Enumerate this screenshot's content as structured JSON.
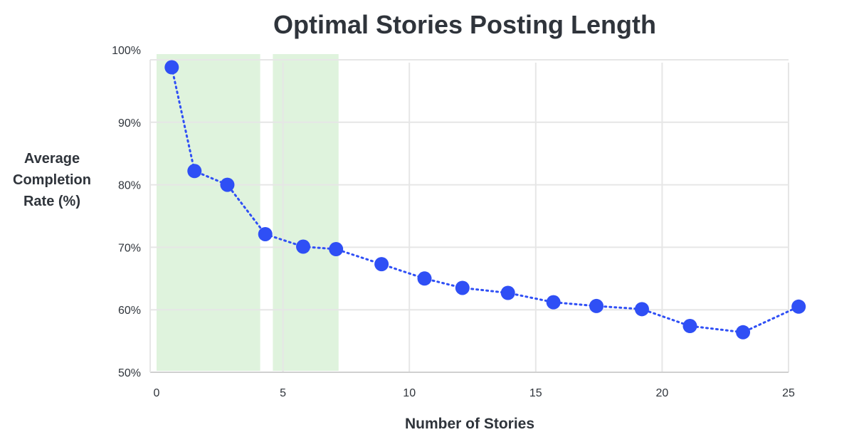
{
  "chart_data": {
    "type": "line",
    "title": "Optimal Stories Posting Length",
    "xlabel": "Number of Stories",
    "ylabel": "Average Completion Rate (%)",
    "xlim": [
      0,
      25
    ],
    "ylim": [
      50,
      100
    ],
    "x_ticks": [
      "0",
      "5",
      "10",
      "15",
      "20",
      "25"
    ],
    "y_ticks": [
      "50%",
      "60%",
      "70%",
      "80%",
      "90%",
      "100%"
    ],
    "grid": true,
    "highlight_ranges": [
      [
        0,
        4.1
      ],
      [
        4.6,
        7.2
      ]
    ],
    "highlight_color": "#dff3dd",
    "series": [
      {
        "color": "#2f4ff5",
        "line_style": "dotted",
        "x": [
          0.6,
          1.5,
          2.8,
          4.3,
          5.8,
          7.1,
          8.9,
          10.6,
          12.1,
          13.9,
          15.7,
          17.4,
          19.2,
          21.1,
          23.2,
          25.4
        ],
        "y": [
          98.8,
          82.2,
          80.0,
          72.1,
          70.1,
          69.7,
          67.3,
          65.0,
          63.5,
          62.7,
          61.2,
          60.6,
          60.1,
          57.4,
          56.4,
          60.5
        ]
      }
    ]
  }
}
